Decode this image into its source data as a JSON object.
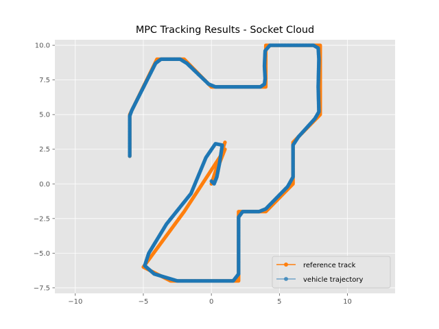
{
  "chart_data": {
    "type": "line",
    "title": "MPC Tracking Results - Socket Cloud",
    "xlabel": "",
    "ylabel": "",
    "xlim": [
      -11.5,
      13.5
    ],
    "ylim": [
      -7.9,
      10.4
    ],
    "xticks": [
      -10,
      -5,
      0,
      5,
      10
    ],
    "xtick_labels": [
      "−10",
      "−5",
      "0",
      "5",
      "10"
    ],
    "yticks": [
      -7.5,
      -5.0,
      -2.5,
      0.0,
      2.5,
      5.0,
      7.5,
      10.0
    ],
    "ytick_labels": [
      "−7.5",
      "−5.0",
      "−2.5",
      "0.0",
      "2.5",
      "5.0",
      "7.5",
      "10.0"
    ],
    "grid": true,
    "legend_position": "lower-right",
    "series": [
      {
        "name": "reference track",
        "color": "#ff7f0e",
        "marker": "circle",
        "points": [
          [
            -6.0,
            2.0
          ],
          [
            -6.0,
            5.0
          ],
          [
            -4.0,
            9.0
          ],
          [
            -2.0,
            9.0
          ],
          [
            0.0,
            7.0
          ],
          [
            4.0,
            7.0
          ],
          [
            4.0,
            10.0
          ],
          [
            8.0,
            10.0
          ],
          [
            8.0,
            5.0
          ],
          [
            6.0,
            3.0
          ],
          [
            6.0,
            0.0
          ],
          [
            4.0,
            -2.0
          ],
          [
            2.0,
            -2.0
          ],
          [
            2.0,
            -7.0
          ],
          [
            -3.0,
            -7.0
          ],
          [
            -5.0,
            -6.0
          ],
          [
            -2.0,
            -2.0
          ],
          [
            1.0,
            2.5
          ],
          [
            0.0,
            0.0
          ],
          [
            1.0,
            3.0
          ]
        ]
      },
      {
        "name": "vehicle trajectory",
        "color": "#1f77b4",
        "marker": "circle",
        "points": [
          [
            -6.0,
            2.0
          ],
          [
            -6.0,
            4.9
          ],
          [
            -5.85,
            5.3
          ],
          [
            -4.1,
            8.7
          ],
          [
            -3.7,
            9.0
          ],
          [
            -2.3,
            9.0
          ],
          [
            -1.8,
            8.7
          ],
          [
            -0.2,
            7.2
          ],
          [
            0.3,
            7.0
          ],
          [
            3.6,
            7.0
          ],
          [
            3.9,
            7.2
          ],
          [
            3.95,
            7.6
          ],
          [
            3.9,
            8.5
          ],
          [
            3.95,
            9.6
          ],
          [
            4.3,
            10.0
          ],
          [
            7.5,
            10.0
          ],
          [
            7.85,
            9.8
          ],
          [
            7.9,
            9.0
          ],
          [
            7.85,
            7.0
          ],
          [
            7.9,
            5.2
          ],
          [
            7.6,
            4.7
          ],
          [
            6.4,
            3.4
          ],
          [
            6.0,
            2.8
          ],
          [
            6.0,
            0.5
          ],
          [
            5.6,
            -0.2
          ],
          [
            4.0,
            -1.8
          ],
          [
            3.5,
            -2.0
          ],
          [
            2.3,
            -2.0
          ],
          [
            2.0,
            -2.4
          ],
          [
            2.0,
            -6.5
          ],
          [
            1.6,
            -7.0
          ],
          [
            -2.5,
            -7.0
          ],
          [
            -4.2,
            -6.5
          ],
          [
            -4.9,
            -5.9
          ],
          [
            -4.6,
            -5.0
          ],
          [
            -3.3,
            -2.9
          ],
          [
            -1.5,
            -0.7
          ],
          [
            -0.4,
            1.9
          ],
          [
            0.3,
            2.9
          ],
          [
            0.8,
            2.8
          ],
          [
            0.6,
            1.5
          ],
          [
            0.4,
            0.5
          ],
          [
            0.2,
            0.0
          ],
          [
            0.0,
            0.2
          ]
        ]
      }
    ]
  }
}
